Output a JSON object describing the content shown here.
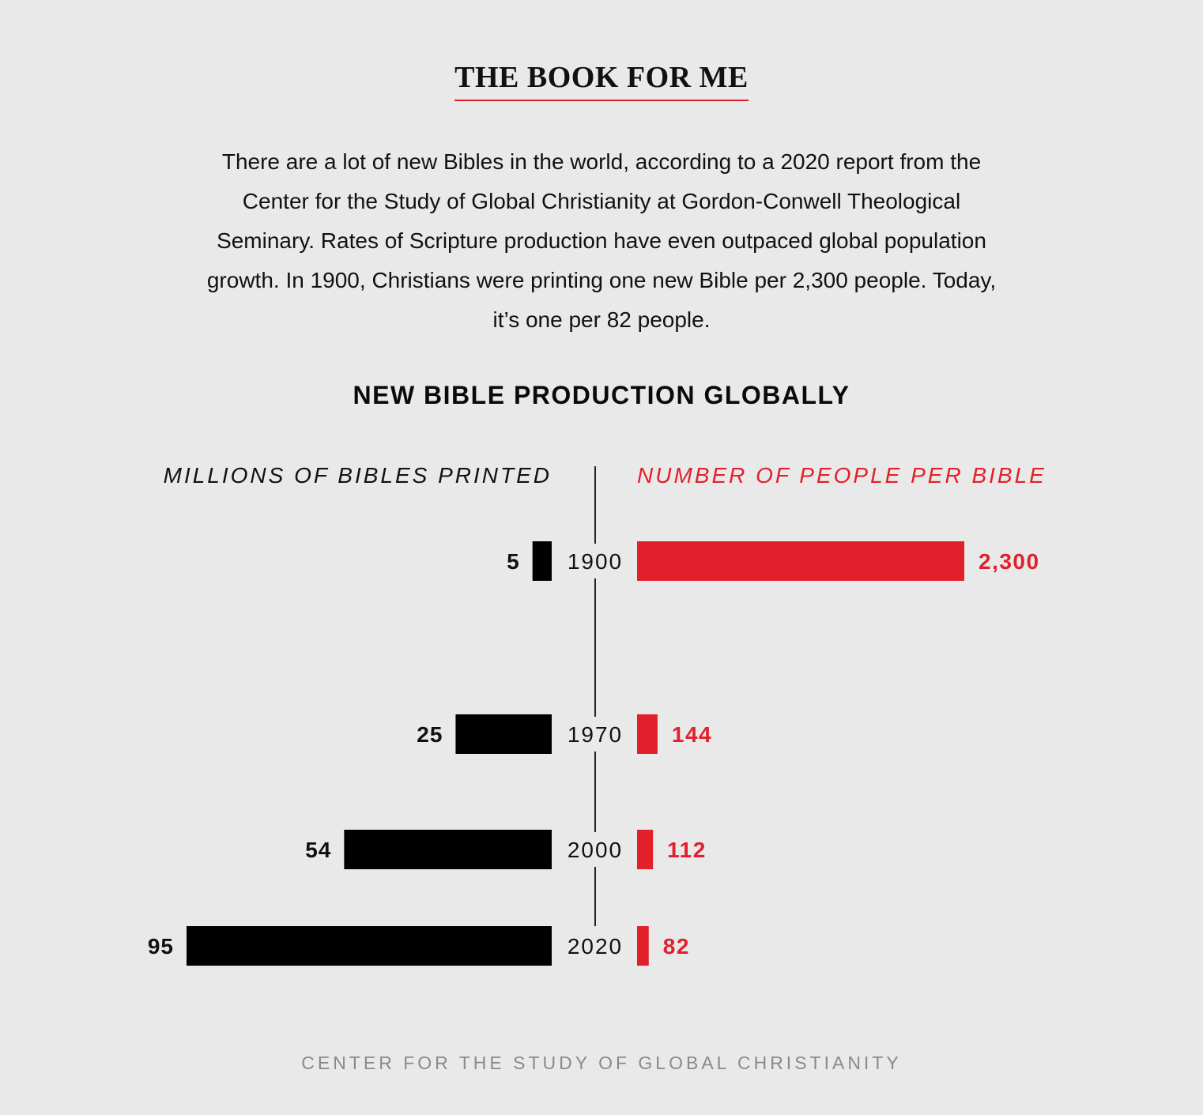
{
  "header": {
    "title": "THE BOOK FOR ME"
  },
  "intro": {
    "text": "There are a lot of new Bibles in the world, according to a 2020 report from the Center for the Study of Global Christianity at Gordon-Conwell Theological Seminary. Rates of Scripture production have even outpaced global population growth. In 1900, Christians were printing one new Bible per 2,300 people. Today, it’s one per 82 people."
  },
  "footer": {
    "source": "CENTER FOR THE STUDY OF GLOBAL CHRISTIANITY"
  },
  "colors": {
    "background": "#e9e9e9",
    "left_bars": "#000000",
    "right_bars": "#e2202b",
    "accent": "#e2202b",
    "source_text": "#8a8a8a"
  },
  "chart_data": {
    "type": "bar",
    "title": "NEW BIBLE PRODUCTION GLOBALLY",
    "categories": [
      "1900",
      "1970",
      "2000",
      "2020"
    ],
    "series": [
      {
        "name": "MILLIONS OF BIBLES PRINTED",
        "values": [
          5,
          25,
          54,
          95
        ],
        "labels": [
          "5",
          "25",
          "54",
          "95"
        ],
        "color": "#000000",
        "direction": "left"
      },
      {
        "name": "NUMBER OF PEOPLE PER BIBLE",
        "values": [
          2300,
          144,
          112,
          82
        ],
        "labels": [
          "2,300",
          "144",
          "112",
          "82"
        ],
        "color": "#e2202b",
        "direction": "right"
      }
    ],
    "orientation": "horizontal-diverging",
    "grid": false,
    "legend": "none"
  }
}
